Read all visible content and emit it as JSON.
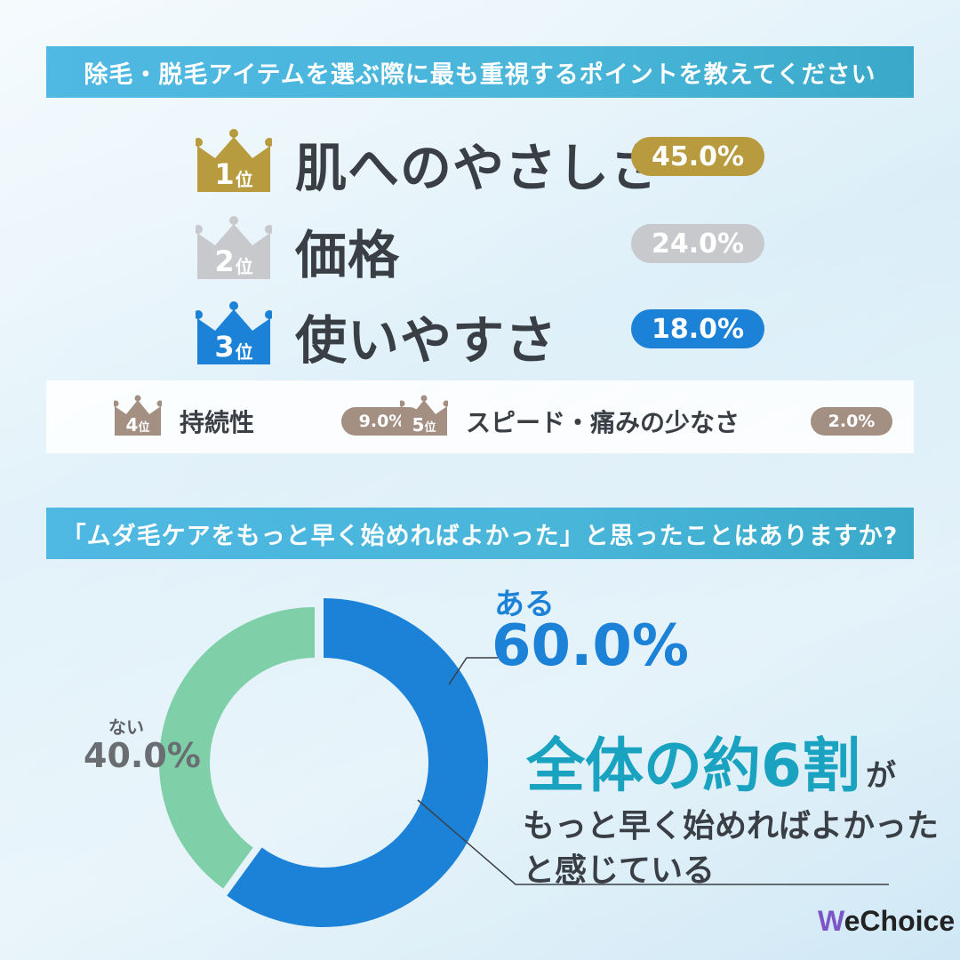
{
  "question1": {
    "title": "除毛・脱毛アイテムを選ぶ際に最も重視するポイントを教えてください",
    "top_ranks": [
      {
        "rank": "1",
        "suffix": "位",
        "label": "肌へのやさしさ",
        "percent": "45.0%",
        "color": "#b89b3e"
      },
      {
        "rank": "2",
        "suffix": "位",
        "label": "価格",
        "percent": "24.0%",
        "color": "#c7c9cc"
      },
      {
        "rank": "3",
        "suffix": "位",
        "label": "使いやすさ",
        "percent": "18.0%",
        "color": "#1c82d8"
      }
    ],
    "minor_ranks": [
      {
        "rank": "4",
        "suffix": "位",
        "label": "持続性",
        "percent": "9.0%",
        "color": "#a48f83"
      },
      {
        "rank": "5",
        "suffix": "位",
        "label": "スピード・痛みの少なさ",
        "percent": "2.0%",
        "color": "#a48f83"
      }
    ]
  },
  "question2": {
    "title": "「ムダ毛ケアをもっと早く始めればよかった」と思ったことはありますか?",
    "yes_label": "ある",
    "yes_percent": "60.0%",
    "no_label": "ない",
    "no_percent": "40.0%",
    "headline_big": "全体の約6割",
    "headline_suffix": "が",
    "sub_line1": "もっと早く始めればよかった",
    "sub_line2": "と感じている"
  },
  "chart_data": [
    {
      "type": "bar",
      "categories": [
        "肌へのやさしさ",
        "価格",
        "使いやすさ",
        "持続性",
        "スピード・痛みの少なさ"
      ],
      "values": [
        45.0,
        24.0,
        18.0,
        9.0,
        2.0
      ]
    },
    {
      "type": "pie",
      "categories": [
        "ある",
        "ない"
      ],
      "values": [
        60.0,
        40.0
      ],
      "colors": [
        "#1c82d8",
        "#7fd0a8"
      ]
    }
  ],
  "brand": {
    "logo_w": "W",
    "logo_rest": "eChoice"
  }
}
